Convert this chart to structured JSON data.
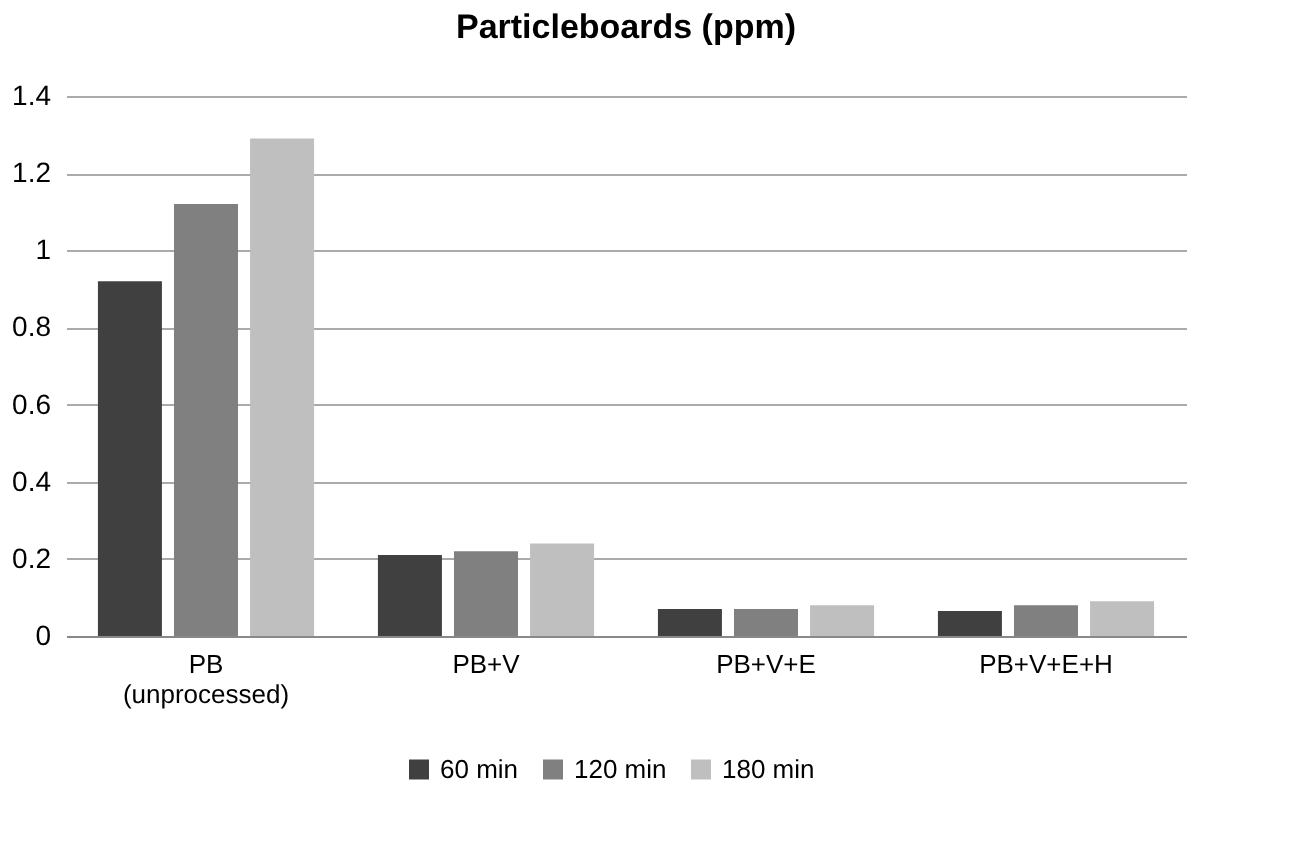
{
  "chart_data": {
    "type": "bar",
    "title": "Particleboards (ppm)",
    "categories": [
      "PB\n(unprocessed)",
      "PB+V",
      "PB+V+E",
      "PB+V+E+H"
    ],
    "series": [
      {
        "name": "60 min",
        "color": "#404040",
        "values": [
          0.92,
          0.21,
          0.07,
          0.065
        ]
      },
      {
        "name": "120 min",
        "color": "#808080",
        "values": [
          1.12,
          0.22,
          0.07,
          0.08
        ]
      },
      {
        "name": "180 min",
        "color": "#bfbfbf",
        "values": [
          1.29,
          0.24,
          0.08,
          0.09
        ]
      }
    ],
    "ylim": [
      0,
      1.4
    ],
    "yticks": [
      0,
      0.2,
      0.4,
      0.6,
      0.8,
      1,
      1.2,
      1.4
    ],
    "grid": "y",
    "legend": "bottom"
  }
}
